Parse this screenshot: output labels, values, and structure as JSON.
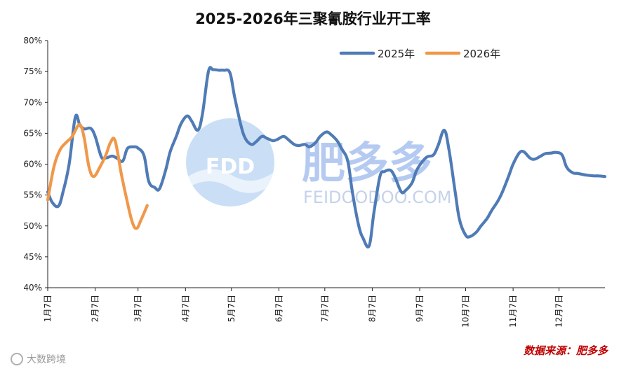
{
  "chart_data": {
    "type": "line",
    "title": "2025-2026年三聚氰胺行业开工率",
    "xlabel": "",
    "ylabel": "",
    "ylim": [
      40,
      80
    ],
    "y_ticks": [
      "40%",
      "45%",
      "50%",
      "55%",
      "60%",
      "65%",
      "70%",
      "75%",
      "80%"
    ],
    "y_tick_values": [
      40,
      45,
      50,
      55,
      60,
      65,
      70,
      75,
      80
    ],
    "x_ticks": [
      "1月7日",
      "2月7日",
      "3月7日",
      "4月7日",
      "5月7日",
      "6月7日",
      "7月7日",
      "8月7日",
      "9月7日",
      "10月7日",
      "11月7日",
      "12月7日"
    ],
    "x_tick_days": [
      0,
      31,
      59,
      90,
      120,
      151,
      181,
      212,
      243,
      273,
      304,
      334
    ],
    "x_range_days": [
      0,
      364
    ],
    "legend_position": "top-right",
    "series": [
      {
        "name": "2025年",
        "color": "#4f7bb6",
        "x_days": [
          0,
          3,
          7,
          10,
          14,
          18,
          21,
          24,
          28,
          31,
          35,
          38,
          42,
          45,
          49,
          52,
          56,
          59,
          63,
          66,
          70,
          73,
          77,
          80,
          84,
          87,
          91,
          94,
          98,
          101,
          105,
          108,
          112,
          115,
          119,
          122,
          126,
          129,
          133,
          136,
          140,
          143,
          147,
          150,
          154,
          157,
          161,
          164,
          168,
          171,
          175,
          178,
          182,
          185,
          189,
          192,
          196,
          199,
          203,
          206,
          210,
          213,
          217,
          220,
          224,
          227,
          231,
          234,
          238,
          241,
          245,
          248,
          252,
          255,
          259,
          262,
          266,
          269,
          273,
          276,
          280,
          283,
          287,
          290,
          294,
          297,
          301,
          304,
          308,
          311,
          315,
          318,
          322,
          325,
          329,
          332,
          336,
          339,
          343,
          346,
          350,
          353,
          357,
          360,
          364
        ],
        "values": [
          55.5,
          53.8,
          53.2,
          55.5,
          60.0,
          67.6,
          66.3,
          65.7,
          65.8,
          64.5,
          61.2,
          61.0,
          61.3,
          61.0,
          60.5,
          62.5,
          62.8,
          62.6,
          61.3,
          57.2,
          56.2,
          56.0,
          59.0,
          62.0,
          64.5,
          66.5,
          67.8,
          67.0,
          65.5,
          68.0,
          75.0,
          75.3,
          75.2,
          75.2,
          74.8,
          71.0,
          66.5,
          64.2,
          63.2,
          63.6,
          64.5,
          64.2,
          63.8,
          64.0,
          64.5,
          64.0,
          63.2,
          63.0,
          63.2,
          62.8,
          63.5,
          64.5,
          65.2,
          64.8,
          63.8,
          62.5,
          60.5,
          55.5,
          50.2,
          48.0,
          46.8,
          52.0,
          58.0,
          58.8,
          59.0,
          57.8,
          55.5,
          55.8,
          57.0,
          59.0,
          60.5,
          61.2,
          61.5,
          63.0,
          65.5,
          62.5,
          55.8,
          51.0,
          48.5,
          48.3,
          49.0,
          50.0,
          51.2,
          52.5,
          54.0,
          55.5,
          58.0,
          60.0,
          61.8,
          62.0,
          61.0,
          60.8,
          61.3,
          61.7,
          61.8,
          61.9,
          61.5,
          59.5,
          58.6,
          58.5,
          58.3,
          58.2,
          58.1,
          58.1,
          58.0
        ]
      },
      {
        "name": "2026年",
        "color": "#f0984a",
        "x_days": [
          0,
          4,
          8,
          12,
          16,
          20,
          22,
          24,
          27,
          30,
          34,
          38,
          41,
          44,
          48,
          51,
          55,
          58,
          61,
          65
        ],
        "values": [
          54.2,
          59.5,
          62.3,
          63.5,
          64.5,
          66.3,
          66.0,
          64.0,
          59.5,
          58.0,
          59.5,
          61.5,
          63.5,
          63.8,
          58.5,
          55.0,
          50.8,
          49.6,
          51.0,
          53.3
        ]
      }
    ]
  },
  "watermark": {
    "logo_text": "FDD",
    "brand": "肥多多",
    "url": "FEIDOODOO.COM"
  },
  "source_note": "数据来源：肥多多",
  "corner_mark": "大数跨境"
}
